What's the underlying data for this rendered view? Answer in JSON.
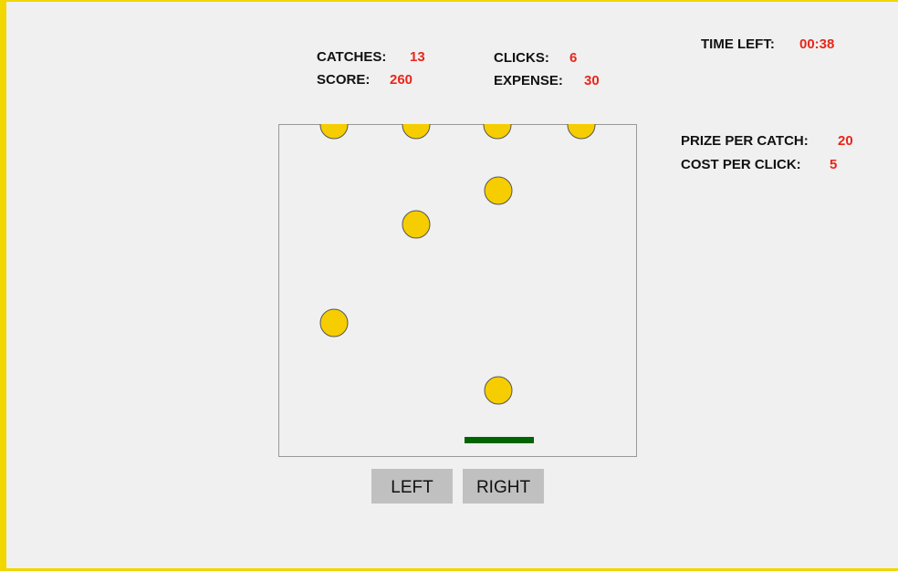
{
  "stats": {
    "catches": {
      "label": "CATCHES:",
      "value": 13
    },
    "score": {
      "label": "SCORE:",
      "value": 260
    },
    "clicks": {
      "label": "CLICKS:",
      "value": 6
    },
    "expense": {
      "label": "EXPENSE:",
      "value": 30
    },
    "time_left": {
      "label": "TIME LEFT:",
      "value": "00:38"
    },
    "prize_per_catch": {
      "label": "PRIZE PER CATCH:",
      "value": 20
    },
    "cost_per_click": {
      "label": "COST PER CLICK:",
      "value": 5
    }
  },
  "buttons": {
    "left": "LEFT",
    "right": "RIGHT"
  }
}
